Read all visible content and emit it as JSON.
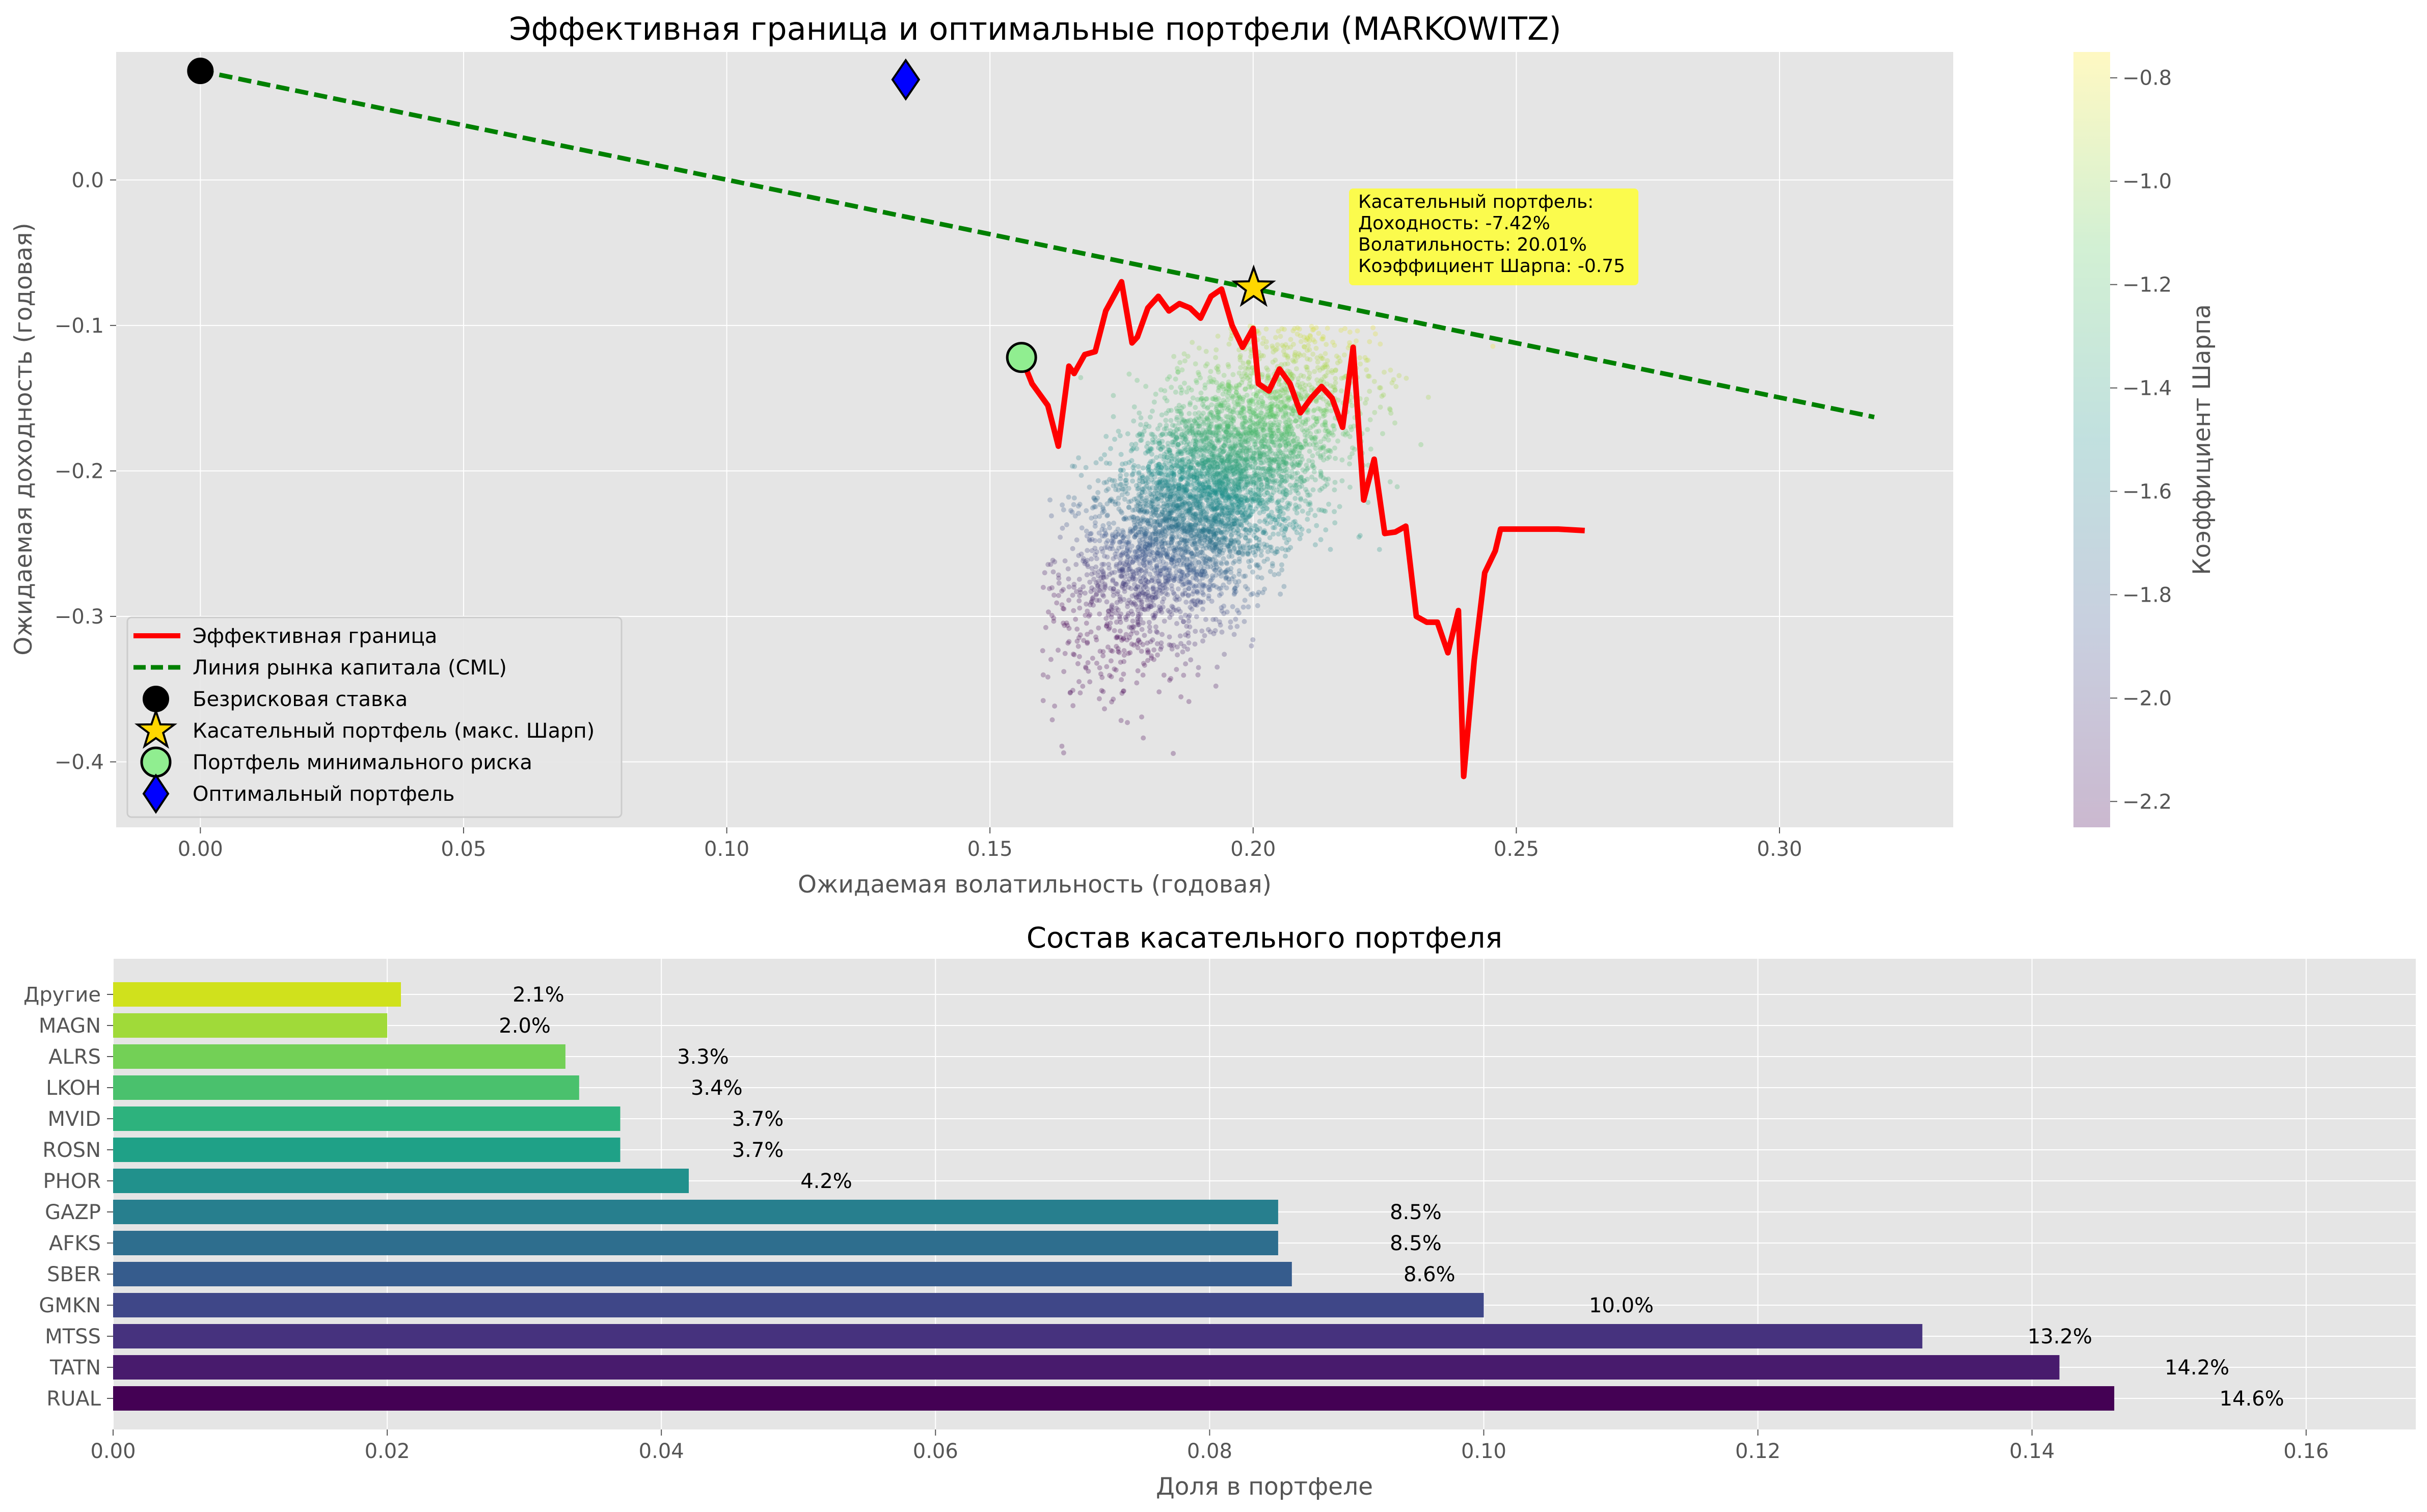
{
  "chart_data": [
    {
      "type": "scatter",
      "title": "Эффективная граница и оптимальные портфели (MARKOWITZ)",
      "xlabel": "Ожидаемая волатильность (годовая)",
      "ylabel": "Ожидаемая доходность (годовая)",
      "xlim": [
        -0.016,
        0.333
      ],
      "ylim": [
        -0.445,
        0.088
      ],
      "xticks": [
        0.0,
        0.05,
        0.1,
        0.15,
        0.2,
        0.25,
        0.3
      ],
      "xtick_labels": [
        "0.00",
        "0.05",
        "0.10",
        "0.15",
        "0.20",
        "0.25",
        "0.30"
      ],
      "yticks": [
        0.0,
        -0.1,
        -0.2,
        -0.3,
        -0.4
      ],
      "ytick_labels": [
        "0.0",
        "−0.1",
        "−0.2",
        "−0.3",
        "−0.4"
      ],
      "grid": true,
      "legend_position": "lower-left",
      "colorbar": {
        "label": "Коэффициент Шарпа",
        "range": [
          -2.25,
          -0.75
        ],
        "ticks": [
          -0.8,
          -1.0,
          -1.2,
          -1.4,
          -1.6,
          -1.8,
          -2.0,
          -2.2
        ],
        "tick_labels": [
          "−0.8",
          "−1.0",
          "−1.2",
          "−1.4",
          "−1.6",
          "−1.8",
          "−2.0",
          "−2.2"
        ],
        "colormap": "viridis"
      },
      "simulated_portfolios_cloud": {
        "center_volatility": 0.192,
        "center_return": -0.215,
        "volatility_range": [
          0.16,
          0.265
        ],
        "return_range": [
          -0.42,
          -0.1
        ],
        "count": 5000
      },
      "efficient_frontier": {
        "name": "Эффективная граница",
        "color": "#ff0000",
        "x": [
          0.156,
          0.158,
          0.161,
          0.163,
          0.165,
          0.166,
          0.168,
          0.17,
          0.172,
          0.175,
          0.177,
          0.178,
          0.18,
          0.182,
          0.184,
          0.186,
          0.188,
          0.19,
          0.192,
          0.194,
          0.196,
          0.198,
          0.2,
          0.201,
          0.203,
          0.205,
          0.207,
          0.209,
          0.211,
          0.213,
          0.215,
          0.217,
          0.219,
          0.221,
          0.223,
          0.225,
          0.227,
          0.229,
          0.231,
          0.233,
          0.235,
          0.237,
          0.239,
          0.24,
          0.242,
          0.244,
          0.246,
          0.247,
          0.248,
          0.25,
          0.252,
          0.254,
          0.258,
          0.263
        ],
        "y": [
          -0.122,
          -0.14,
          -0.155,
          -0.183,
          -0.128,
          -0.133,
          -0.12,
          -0.118,
          -0.09,
          -0.07,
          -0.112,
          -0.108,
          -0.088,
          -0.08,
          -0.09,
          -0.085,
          -0.088,
          -0.095,
          -0.08,
          -0.075,
          -0.1,
          -0.115,
          -0.102,
          -0.14,
          -0.145,
          -0.13,
          -0.14,
          -0.16,
          -0.15,
          -0.142,
          -0.15,
          -0.17,
          -0.115,
          -0.22,
          -0.192,
          -0.243,
          -0.242,
          -0.238,
          -0.3,
          -0.304,
          -0.304,
          -0.325,
          -0.296,
          -0.41,
          -0.33,
          -0.27,
          -0.255,
          -0.24,
          -0.24,
          -0.24,
          -0.24,
          -0.24,
          -0.24,
          -0.241
        ]
      },
      "cml": {
        "name": "Линия рынка капитала (CML)",
        "color": "#008000",
        "x": [
          0.0,
          0.318
        ],
        "y": [
          0.075,
          -0.163
        ]
      },
      "risk_free": {
        "name": "Безрисковая ставка",
        "x": 0.0,
        "y": 0.075,
        "color": "#000000"
      },
      "tangency": {
        "name": "Касательный портфель (макс. Шарп)",
        "x": 0.2001,
        "y": -0.0742,
        "color": "#ffd700"
      },
      "min_risk": {
        "name": "Портфель минимального риска",
        "x": 0.156,
        "y": -0.122,
        "color": "#90ee90"
      },
      "optimal": {
        "name": "Оптимальный портфель",
        "x": 0.134,
        "y": 0.069,
        "color": "#0000ff"
      },
      "annotation": {
        "x": 0.22,
        "y": -0.003,
        "lines": [
          "Касательный портфель:",
          "Доходность: -7.42%",
          "Волатильность: 20.01%",
          "Коэффициент Шарпа: -0.75"
        ],
        "background": "#ffff33"
      }
    },
    {
      "type": "bar",
      "orientation": "horizontal",
      "title": "Состав касательного портфеля",
      "xlabel": "Доля в портфеле",
      "ylabel": "",
      "xlim": [
        0,
        0.168
      ],
      "xticks": [
        0.0,
        0.02,
        0.04,
        0.06,
        0.08,
        0.1,
        0.12,
        0.14,
        0.16
      ],
      "xtick_labels": [
        "0.00",
        "0.02",
        "0.04",
        "0.06",
        "0.08",
        "0.10",
        "0.12",
        "0.14",
        "0.16"
      ],
      "grid": true,
      "categories": [
        "RUAL",
        "TATN",
        "MTSS",
        "GMKN",
        "SBER",
        "AFKS",
        "GAZP",
        "PHOR",
        "ROSN",
        "MVID",
        "LKOH",
        "ALRS",
        "MAGN",
        "Другие"
      ],
      "values": [
        0.146,
        0.142,
        0.132,
        0.1,
        0.086,
        0.085,
        0.085,
        0.042,
        0.037,
        0.037,
        0.034,
        0.033,
        0.02,
        0.021
      ],
      "labels": [
        "14.6%",
        "14.2%",
        "13.2%",
        "10.0%",
        "8.6%",
        "8.5%",
        "8.5%",
        "4.2%",
        "3.7%",
        "3.7%",
        "3.4%",
        "3.3%",
        "2.0%",
        "2.1%"
      ],
      "colors": [
        "#440154",
        "#481b6d",
        "#46327e",
        "#3f4788",
        "#365c8d",
        "#2e6e8e",
        "#277f8e",
        "#21918c",
        "#1fa187",
        "#2db27d",
        "#4ac16d",
        "#73d056",
        "#a0da39",
        "#d0e11c"
      ]
    }
  ]
}
